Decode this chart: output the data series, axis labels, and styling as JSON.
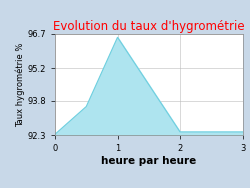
{
  "title": "Evolution du taux d'hygrométrie",
  "title_color": "#ff0000",
  "xlabel": "heure par heure",
  "ylabel": "Taux hygrométrie %",
  "x": [
    0,
    0.5,
    1,
    2,
    3
  ],
  "y": [
    92.35,
    93.55,
    96.55,
    92.45,
    92.45
  ],
  "ylim": [
    92.3,
    96.7
  ],
  "xlim": [
    0,
    3
  ],
  "yticks": [
    92.3,
    93.8,
    95.2,
    96.7
  ],
  "xticks": [
    0,
    1,
    2,
    3
  ],
  "line_color": "#6ecfdf",
  "fill_color": "#aee4ef",
  "fill_alpha": 1.0,
  "background_color": "#c8d8e8",
  "plot_bg_color": "#ffffff",
  "title_fontsize": 8.5,
  "xlabel_fontsize": 7.5,
  "ylabel_fontsize": 6.0,
  "tick_fontsize": 6.0
}
